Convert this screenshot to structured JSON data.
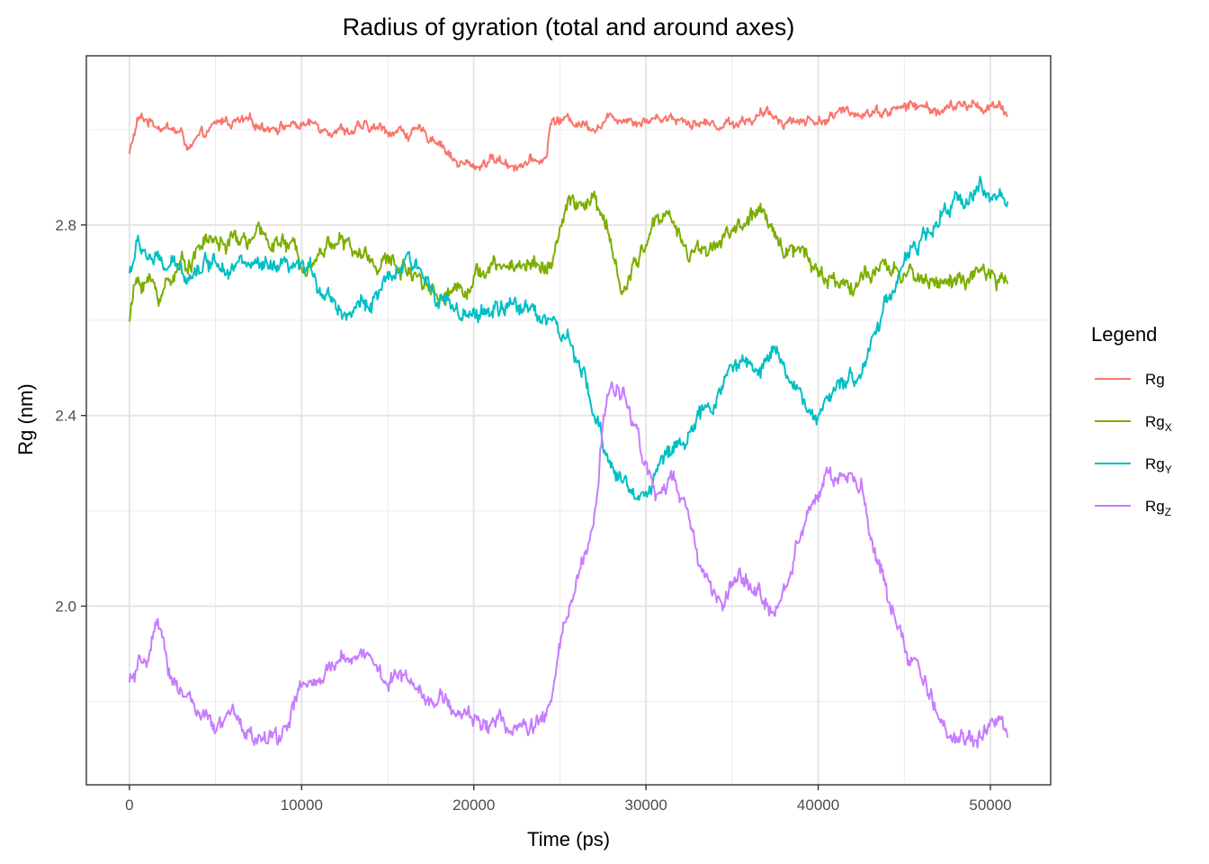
{
  "chart_data": {
    "type": "line",
    "title": "Radius of gyration (total and around axes)",
    "xlabel": "Time (ps)",
    "ylabel": "Rg (nm)",
    "xlim": [
      -2500,
      53500
    ],
    "ylim": [
      1.625,
      3.155
    ],
    "x_ticks": [
      0,
      10000,
      20000,
      30000,
      40000,
      50000
    ],
    "x_tick_labels": [
      "0",
      "10000",
      "20000",
      "30000",
      "40000",
      "50000"
    ],
    "y_ticks": [
      2.0,
      2.4,
      2.8
    ],
    "y_tick_labels": [
      "2.0",
      "2.4",
      "2.8"
    ],
    "grid": true,
    "legend": {
      "title": "Legend",
      "position": "right",
      "entries": [
        {
          "base": "Rg",
          "sub": ""
        },
        {
          "base": "Rg",
          "sub": "X"
        },
        {
          "base": "Rg",
          "sub": "Y"
        },
        {
          "base": "Rg",
          "sub": "Z"
        }
      ]
    },
    "series": [
      {
        "name": "Rg",
        "color": "#F8766D",
        "noise": 0.012,
        "x": [
          0,
          500,
          1000,
          2000,
          3000,
          3500,
          4500,
          5500,
          7000,
          9000,
          11000,
          13000,
          15000,
          17000,
          18000,
          19000,
          20000,
          21000,
          22000,
          23500,
          24200,
          24500,
          25500,
          27000,
          28500,
          30000,
          31000,
          32500,
          34000,
          35500,
          37000,
          38500,
          40000,
          41000,
          42500,
          44000,
          45500,
          47000,
          48500,
          50000,
          51000
        ],
        "values": [
          2.95,
          3.02,
          3.02,
          3.01,
          2.99,
          2.96,
          2.99,
          3.02,
          3.01,
          3.01,
          3.01,
          3.0,
          3.0,
          2.99,
          2.98,
          2.93,
          2.92,
          2.94,
          2.93,
          2.93,
          2.94,
          3.02,
          3.02,
          3.01,
          3.03,
          3.02,
          3.03,
          3.02,
          3.01,
          3.02,
          3.03,
          3.02,
          3.02,
          3.03,
          3.04,
          3.04,
          3.05,
          3.04,
          3.05,
          3.05,
          3.03
        ]
      },
      {
        "name": "RgX",
        "color": "#7CAE00",
        "noise": 0.02,
        "x": [
          0,
          300,
          1000,
          1700,
          2500,
          3500,
          4500,
          5500,
          7000,
          8500,
          10000,
          11000,
          12000,
          13000,
          15000,
          17000,
          18000,
          19000,
          20500,
          21500,
          23000,
          24500,
          25500,
          27000,
          28000,
          28500,
          29500,
          30500,
          31500,
          32500,
          34000,
          35500,
          36500,
          38000,
          39500,
          40500,
          42000,
          44000,
          46000,
          48000,
          50000,
          51000
        ],
        "values": [
          2.6,
          2.67,
          2.69,
          2.65,
          2.7,
          2.73,
          2.77,
          2.76,
          2.77,
          2.77,
          2.73,
          2.74,
          2.78,
          2.74,
          2.72,
          2.7,
          2.65,
          2.67,
          2.7,
          2.71,
          2.72,
          2.72,
          2.84,
          2.85,
          2.76,
          2.65,
          2.72,
          2.81,
          2.82,
          2.74,
          2.76,
          2.8,
          2.82,
          2.76,
          2.74,
          2.68,
          2.68,
          2.7,
          2.69,
          2.68,
          2.69,
          2.67
        ]
      },
      {
        "name": "RgY",
        "color": "#00BFC4",
        "noise": 0.02,
        "x": [
          0,
          500,
          1500,
          3000,
          5000,
          6500,
          8000,
          9000,
          10500,
          11500,
          12500,
          13500,
          15000,
          16000,
          17500,
          18500,
          19500,
          20500,
          22000,
          23500,
          24500,
          25500,
          26500,
          27500,
          28500,
          29500,
          30500,
          31500,
          32500,
          33500,
          34500,
          35500,
          36500,
          37500,
          38500,
          39500,
          40500,
          41500,
          42500,
          43500,
          45000,
          46500,
          48000,
          49500,
          51000
        ],
        "values": [
          2.7,
          2.76,
          2.72,
          2.7,
          2.73,
          2.72,
          2.7,
          2.7,
          2.7,
          2.66,
          2.62,
          2.63,
          2.67,
          2.72,
          2.68,
          2.64,
          2.59,
          2.62,
          2.62,
          2.63,
          2.6,
          2.55,
          2.46,
          2.34,
          2.27,
          2.22,
          2.28,
          2.33,
          2.37,
          2.4,
          2.47,
          2.52,
          2.48,
          2.56,
          2.47,
          2.4,
          2.42,
          2.46,
          2.5,
          2.6,
          2.73,
          2.78,
          2.85,
          2.88,
          2.86
        ]
      },
      {
        "name": "RgZ",
        "color": "#C77CFF",
        "noise": 0.02,
        "x": [
          0,
          800,
          1600,
          2200,
          3000,
          4000,
          5000,
          6000,
          7000,
          8000,
          9000,
          10000,
          11000,
          12500,
          14000,
          15000,
          16000,
          17000,
          18000,
          19000,
          20000,
          21000,
          22000,
          23000,
          24000,
          24500,
          25000,
          26000,
          27000,
          27500,
          28000,
          28700,
          29500,
          30500,
          31500,
          32500,
          33500,
          34500,
          35500,
          36500,
          37500,
          38500,
          39500,
          40500,
          41500,
          42500,
          43500,
          44500,
          45500,
          46500,
          47500,
          48500,
          49500,
          51000
        ],
        "values": [
          1.84,
          1.87,
          1.96,
          1.86,
          1.83,
          1.78,
          1.73,
          1.77,
          1.73,
          1.71,
          1.74,
          1.83,
          1.83,
          1.9,
          1.9,
          1.83,
          1.86,
          1.83,
          1.8,
          1.78,
          1.76,
          1.76,
          1.75,
          1.74,
          1.75,
          1.8,
          1.91,
          2.05,
          2.18,
          2.38,
          2.46,
          2.45,
          2.38,
          2.22,
          2.27,
          2.17,
          2.05,
          2.0,
          2.06,
          2.02,
          1.98,
          2.1,
          2.22,
          2.27,
          2.26,
          2.25,
          2.08,
          1.96,
          1.88,
          1.8,
          1.74,
          1.73,
          1.73,
          1.75
        ]
      }
    ]
  }
}
